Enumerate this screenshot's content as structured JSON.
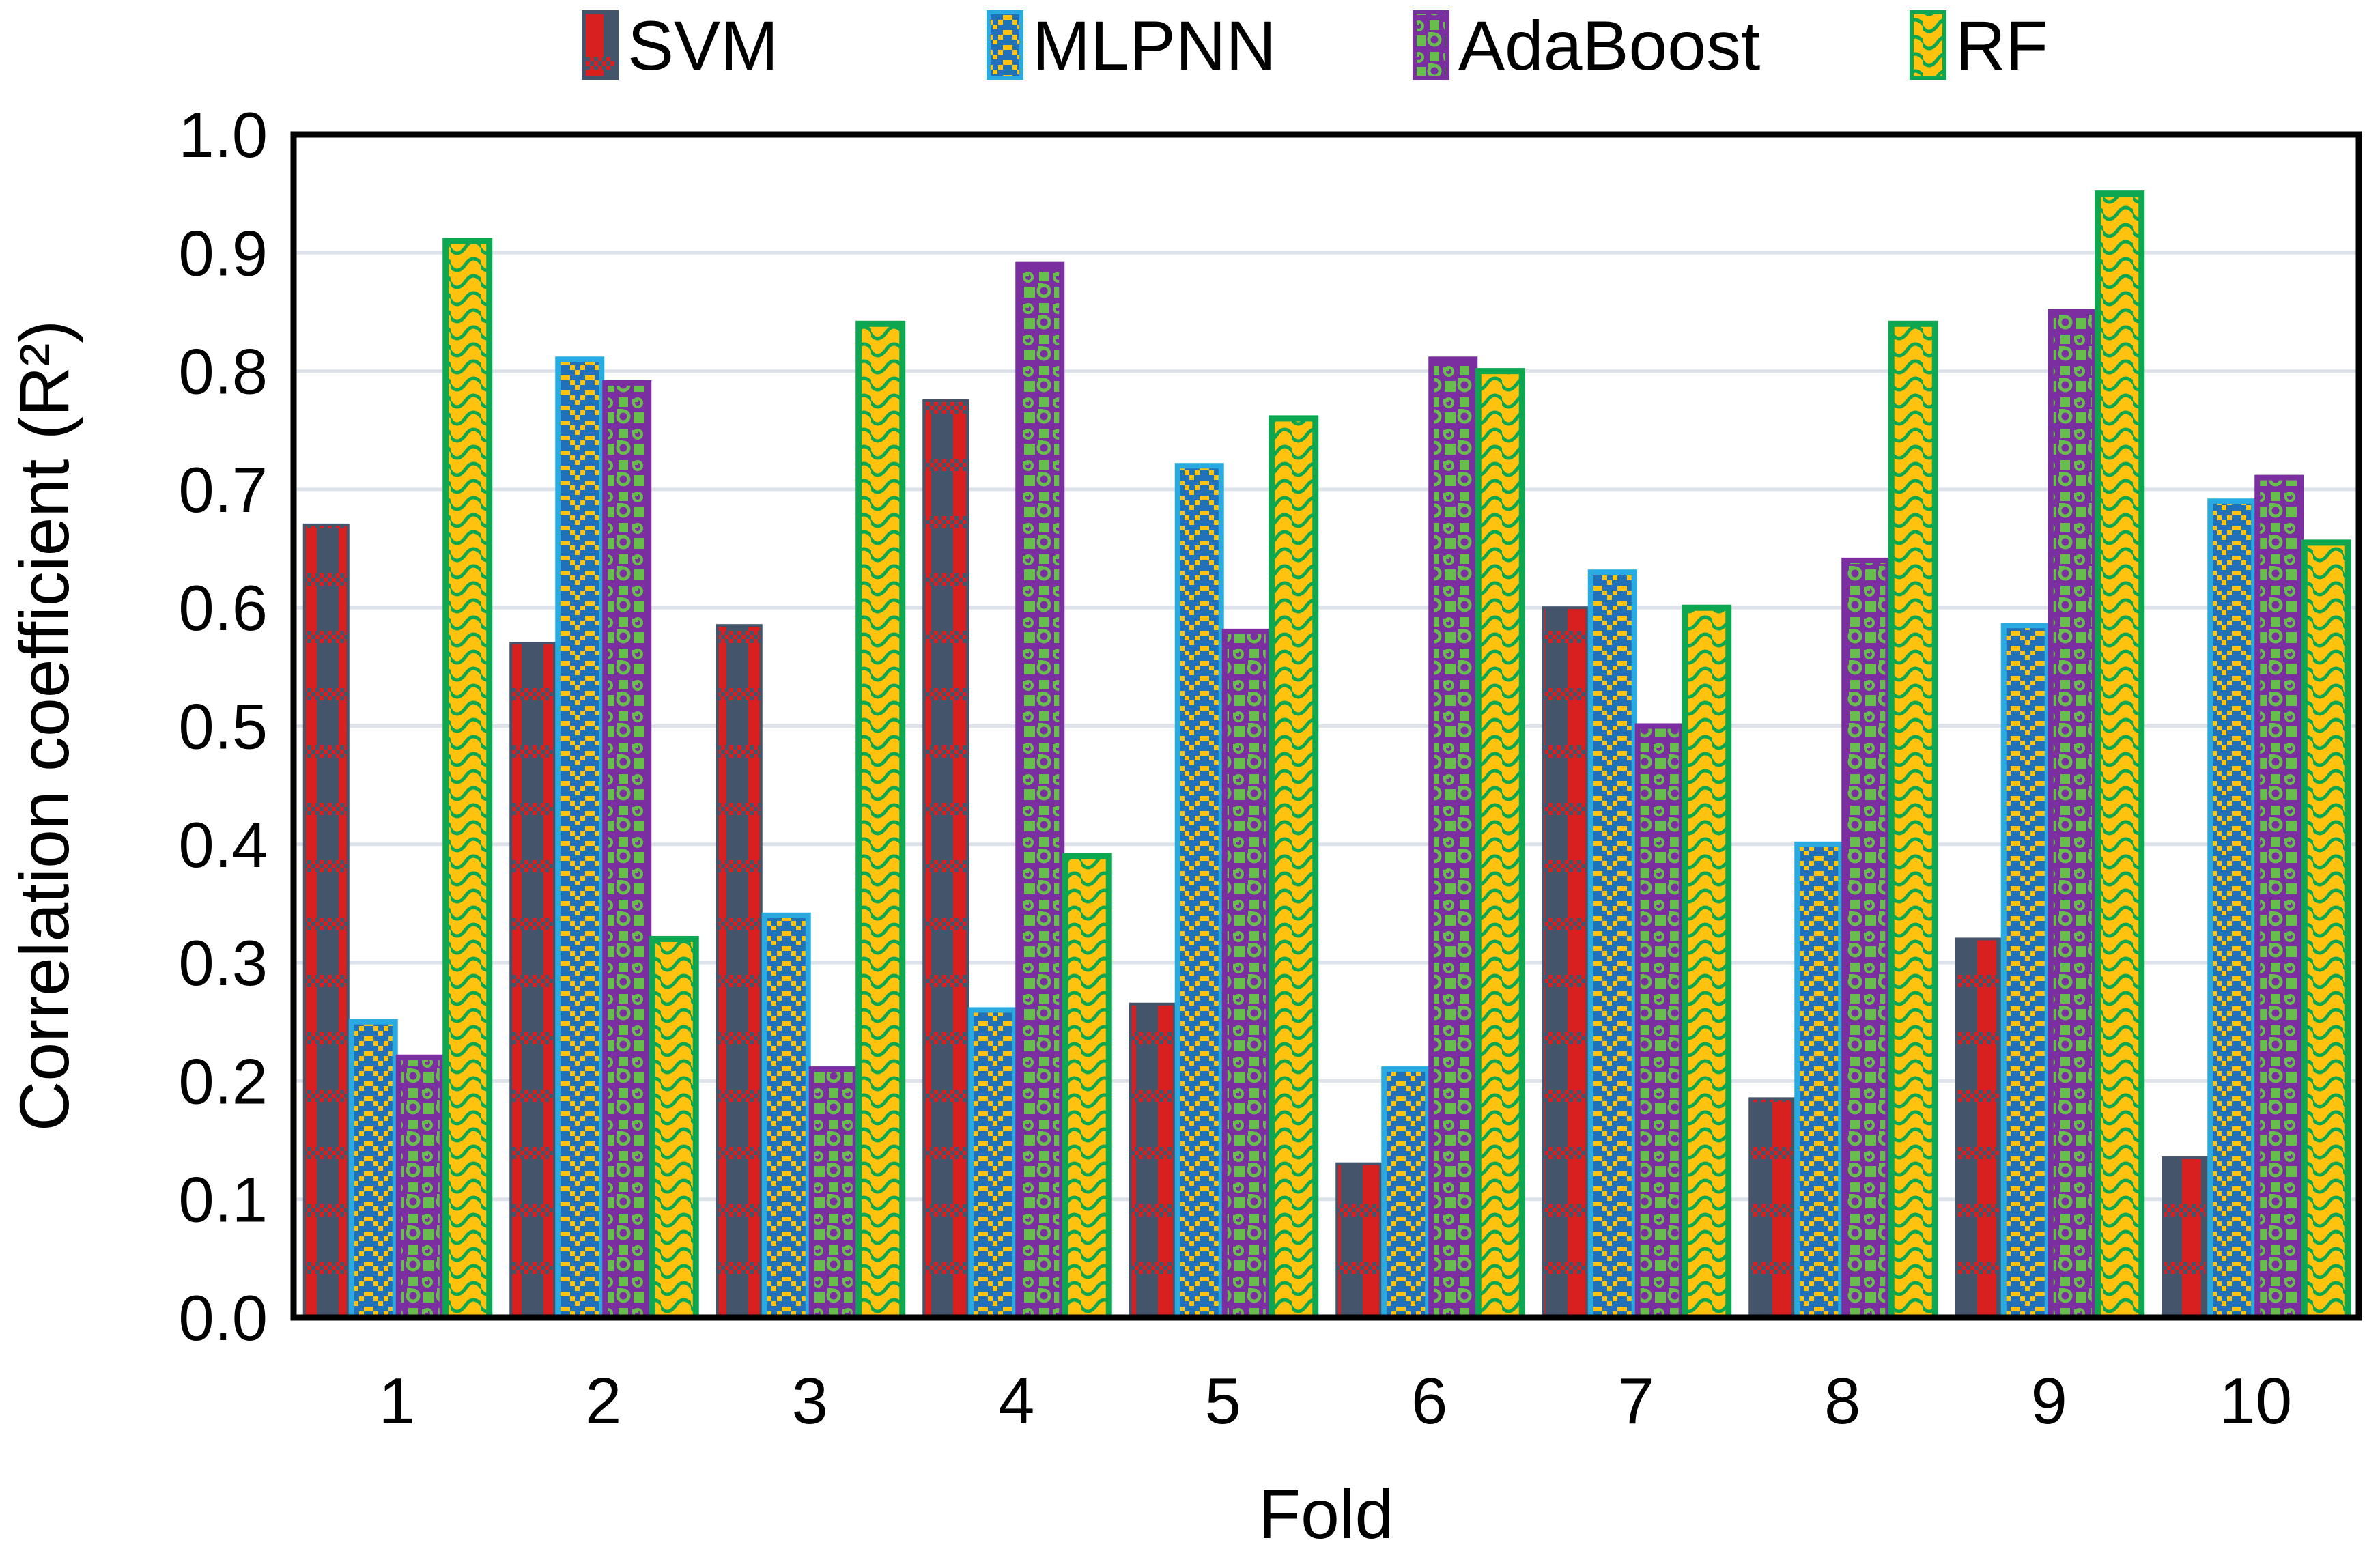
{
  "figure": {
    "background": "#ffffff",
    "gridline_color": "#dee3eb",
    "axis_box_color": "#000000",
    "text_color": "#000000"
  },
  "chart_data": {
    "type": "bar",
    "title": "",
    "xlabel": "Fold",
    "ylabel": "Correlation coefficient (R²)",
    "categories": [
      "1",
      "2",
      "3",
      "4",
      "5",
      "6",
      "7",
      "8",
      "9",
      "10"
    ],
    "ylim": [
      0.0,
      1.0
    ],
    "ytick_step": 0.1,
    "ytick_labels": [
      "0.0",
      "0.1",
      "0.2",
      "0.3",
      "0.4",
      "0.5",
      "0.6",
      "0.7",
      "0.8",
      "0.9",
      "1.0"
    ],
    "grid": "horizontal",
    "legend_position": "top",
    "series": [
      {
        "name": "SVM",
        "pattern": "plaid",
        "fill": "#44546a",
        "accent": "#d7201f",
        "border": "#44546a",
        "values": [
          0.67,
          0.57,
          0.585,
          0.775,
          0.265,
          0.13,
          0.6,
          0.185,
          0.32,
          0.135
        ]
      },
      {
        "name": "MLPNN",
        "pattern": "dot-zigzag",
        "fill": "#2171b8",
        "accent": "#ffc20e",
        "border": "#29abe2",
        "values": [
          0.25,
          0.81,
          0.34,
          0.26,
          0.72,
          0.21,
          0.63,
          0.4,
          0.585,
          0.69
        ]
      },
      {
        "name": "AdaBoost",
        "pattern": "spheres",
        "fill": "#7a2ea0",
        "accent": "#68be4c",
        "border": "#7a2ea0",
        "values": [
          0.22,
          0.79,
          0.21,
          0.89,
          0.58,
          0.81,
          0.5,
          0.64,
          0.85,
          0.71
        ]
      },
      {
        "name": "RF",
        "pattern": "shingle",
        "fill": "#ffc20e",
        "accent": "#0ca750",
        "border": "#0ca750",
        "values": [
          0.91,
          0.32,
          0.84,
          0.39,
          0.76,
          0.8,
          0.6,
          0.84,
          0.95,
          0.655
        ]
      }
    ]
  }
}
